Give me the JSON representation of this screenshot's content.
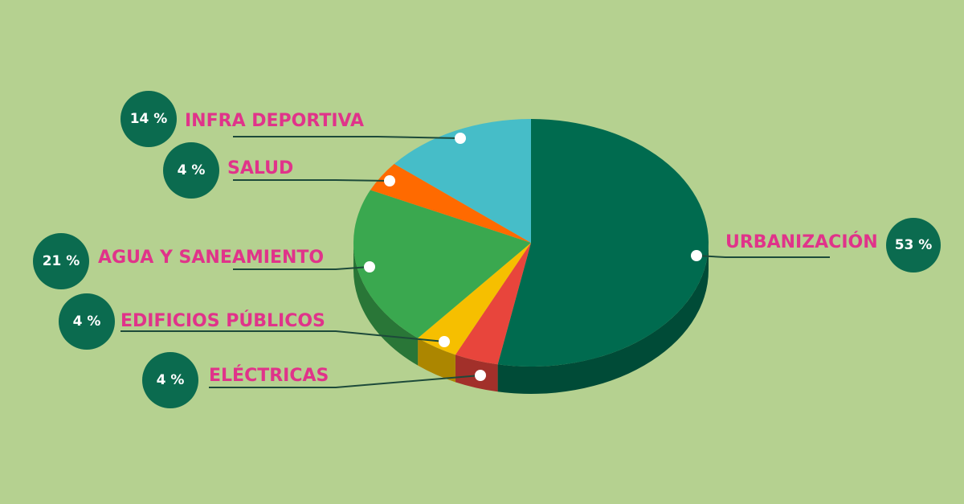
{
  "chart_data": {
    "type": "pie",
    "categories": [
      "URBANIZACIÓN",
      "ELÉCTRICAS",
      "EDIFICIOS PÚBLICOS",
      "AGUA Y SANEAMIENTO",
      "SALUD",
      "INFRA DEPORTIVA"
    ],
    "values": [
      53,
      4,
      4,
      21,
      4,
      14
    ],
    "value_labels": [
      "53 %",
      "4 %",
      "4 %",
      "21 %",
      "4 %",
      "14 %"
    ],
    "colors": [
      "#006b4f",
      "#e8453c",
      "#f6bf00",
      "#3aa84f",
      "#ff6a00",
      "#46bdc8"
    ]
  }
}
